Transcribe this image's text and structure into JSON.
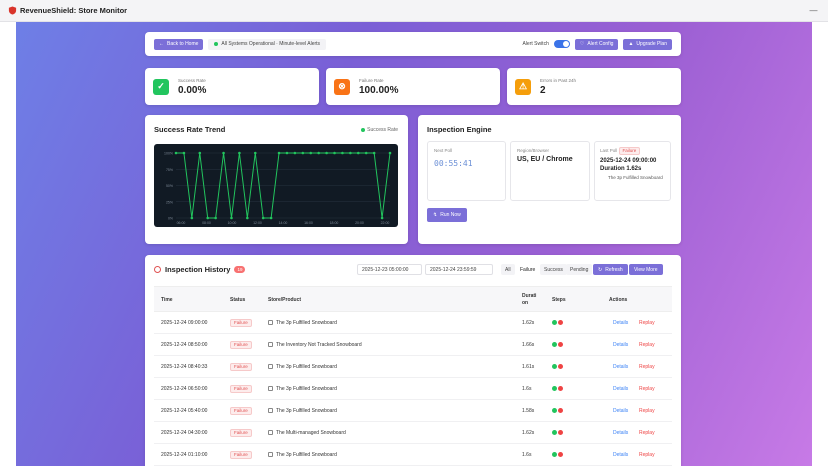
{
  "window": {
    "title": "RevenueShield: Store Monitor",
    "menu_glyph": "—"
  },
  "topbar": {
    "back_label": "Back to Home",
    "status_text": "All Systems Operational · Minute-level Alerts",
    "alert_switch_label": "Alert Switch",
    "alert_switch_on": true,
    "alert_config_label": "Alert Config",
    "upgrade_label": "Upgrade Plan"
  },
  "stats": [
    {
      "label": "Success Rate",
      "value": "0.00%",
      "color": "#22c55e",
      "icon": "check-circle-icon"
    },
    {
      "label": "Failure Rate",
      "value": "100.00%",
      "color": "#f97316",
      "icon": "x-circle-icon"
    },
    {
      "label": "Errors in Past 24h",
      "value": "2",
      "color": "#f59e0b",
      "icon": "warning-icon"
    }
  ],
  "trend": {
    "title": "Success Rate Trend",
    "legend": "Success Rate",
    "chart_data": {
      "type": "line",
      "series": [
        {
          "name": "Success Rate",
          "values": [
            100,
            100,
            0,
            100,
            0,
            0,
            100,
            0,
            100,
            0,
            100,
            0,
            0,
            100,
            100,
            100,
            100,
            100,
            100,
            100,
            100,
            100,
            100,
            100,
            100,
            100,
            0,
            100
          ]
        }
      ],
      "ylim": [
        0,
        100
      ],
      "yticks": [
        "100%",
        "75%",
        "50%",
        "25%",
        "0%"
      ],
      "xticks": [
        "06:00",
        "08:00",
        "10:00",
        "12:00",
        "14:00",
        "16:00",
        "18:00",
        "20:00",
        "22:00"
      ],
      "color": "#22c55e"
    }
  },
  "engine": {
    "title": "Inspection Engine",
    "next_poll_label": "Next Poll",
    "next_poll_value": "00:55:41",
    "region_label": "Region/Browser",
    "region_value": "US, EU / Chrome",
    "last_poll_label": "Last Poll",
    "last_poll_status": "Failure",
    "last_poll_time": "2025-12-24 09:00:00",
    "last_poll_duration": "Duration 1.62s",
    "last_poll_product": "The 3p Fulfilled Snowboard",
    "run_now_label": "Run Now"
  },
  "history": {
    "title": "Inspection History",
    "count": "19",
    "date_from": "2025-12-23 05:00:00",
    "date_to": "2025-12-24 23:59:59",
    "filters": [
      "All",
      "Failure",
      "Success",
      "Pending"
    ],
    "refresh_label": "Refresh",
    "view_more_label": "View More",
    "columns": {
      "time": "Time",
      "status": "Status",
      "product": "Store/Product",
      "duration": "Durati on",
      "steps": "Steps",
      "actions": "Actions"
    },
    "rows": [
      {
        "time": "2025-12-24 09:00:00",
        "status": "Failure",
        "product": "The 3p Fulfilled Snowboard",
        "duration": "1.62s"
      },
      {
        "time": "2025-12-24 08:50:00",
        "status": "Failure",
        "product": "The Inventory Not Tracked Snowboard",
        "duration": "1.66s"
      },
      {
        "time": "2025-12-24 08:40:33",
        "status": "Failure",
        "product": "The 3p Fulfilled Snowboard",
        "duration": "1.61s"
      },
      {
        "time": "2025-12-24 06:50:00",
        "status": "Failure",
        "product": "The 3p Fulfilled Snowboard",
        "duration": "1.6s"
      },
      {
        "time": "2025-12-24 05:40:00",
        "status": "Failure",
        "product": "The 3p Fulfilled Snowboard",
        "duration": "1.58s"
      },
      {
        "time": "2025-12-24 04:30:00",
        "status": "Failure",
        "product": "The Multi-managed Snowboard",
        "duration": "1.62s"
      },
      {
        "time": "2025-12-24 01:10:00",
        "status": "Failure",
        "product": "The 3p Fulfilled Snowboard",
        "duration": "1.6s"
      }
    ],
    "details_label": "Details",
    "replay_label": "Replay"
  }
}
